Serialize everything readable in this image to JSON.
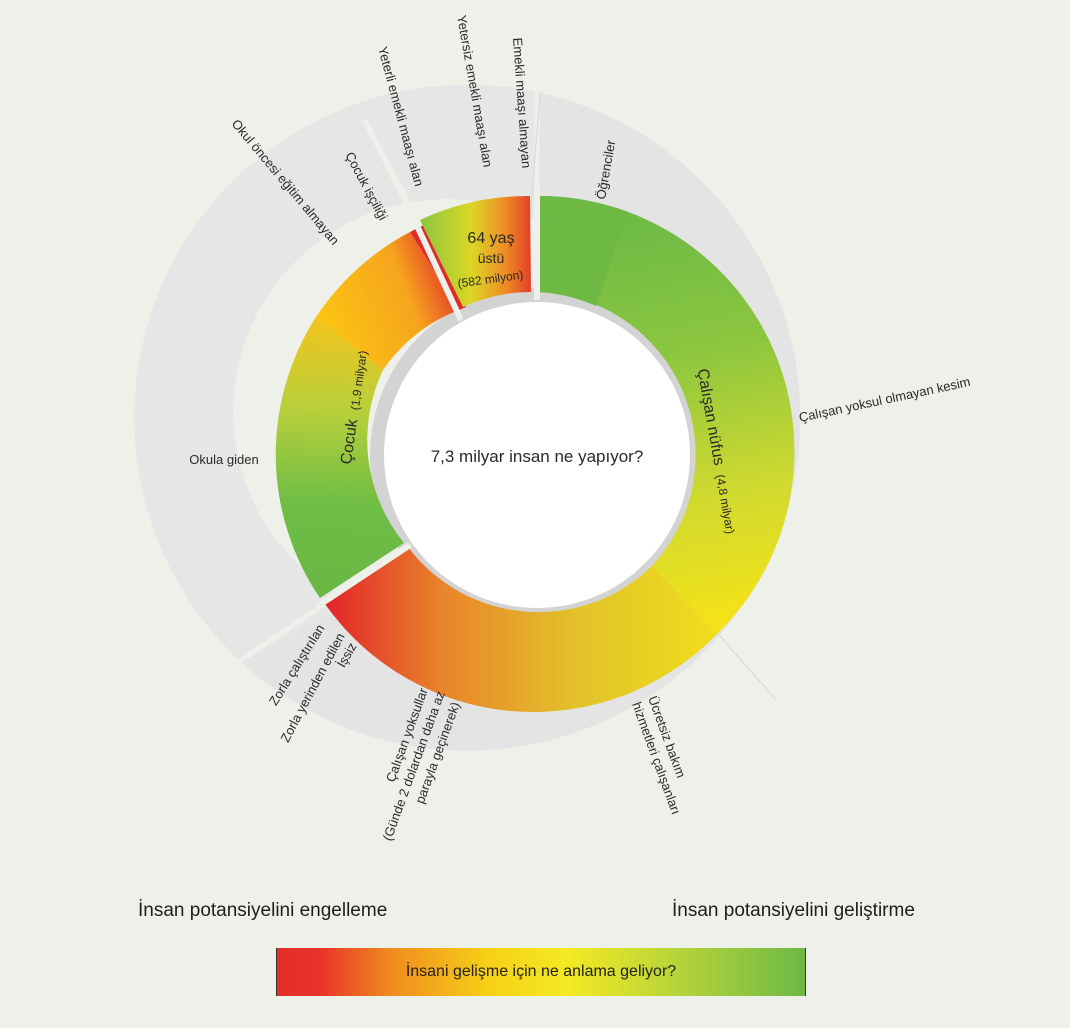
{
  "center_title": "7,3 milyar insan ne yapıyor?",
  "inner_ring": {
    "elderly": {
      "line1": "64 yaş",
      "line2": "üstü",
      "line3": "(582 milyon)"
    },
    "working": {
      "main": "Çalışan nüfus",
      "sub": "(4,8 milyar)"
    },
    "children": {
      "main": "Çocuk",
      "sub": "(1,9 milyar)"
    }
  },
  "outer_labels": {
    "students": "Öğrenciler",
    "not_poor": "Çalışan yoksul olmayan kesim",
    "unpaid_care_1": "Ücretsiz bakım",
    "unpaid_care_2": "hizmetleri çalışanları",
    "working_poor_1": "Çalışan yoksullar",
    "working_poor_2": "(Günde 2 dolardan daha az",
    "working_poor_3": "parayla geçinerek)",
    "unemployed": "İşsiz",
    "displaced": "Zorla yerinden edilen",
    "forced_labor": "Zorla çalıştırılan",
    "in_school": "Okula giden",
    "no_preschool": "Okul öncesi eğitim almayan",
    "child_labor": "Çocuk işçiliği",
    "adequate_pension": "Yeterli emekli maaşı alan",
    "inadequate_pension": "Yetersiz emekli maaşı alan",
    "no_pension": "Emekli maaşı almayan"
  },
  "legend": {
    "left": "İnsan potansiyelini engelleme",
    "right": "İnsan potansiyelini geliştirme",
    "bar_label": "İnsani gelişme için ne anlama geliyor?"
  },
  "colors": {
    "background": "#edf1ea",
    "outer_ring": "#e4e4e4",
    "separator": "#cfcfcf",
    "red": "#e32d27",
    "orange": "#f08d1f",
    "yellow": "#f6d017",
    "green": "#6db944"
  }
}
